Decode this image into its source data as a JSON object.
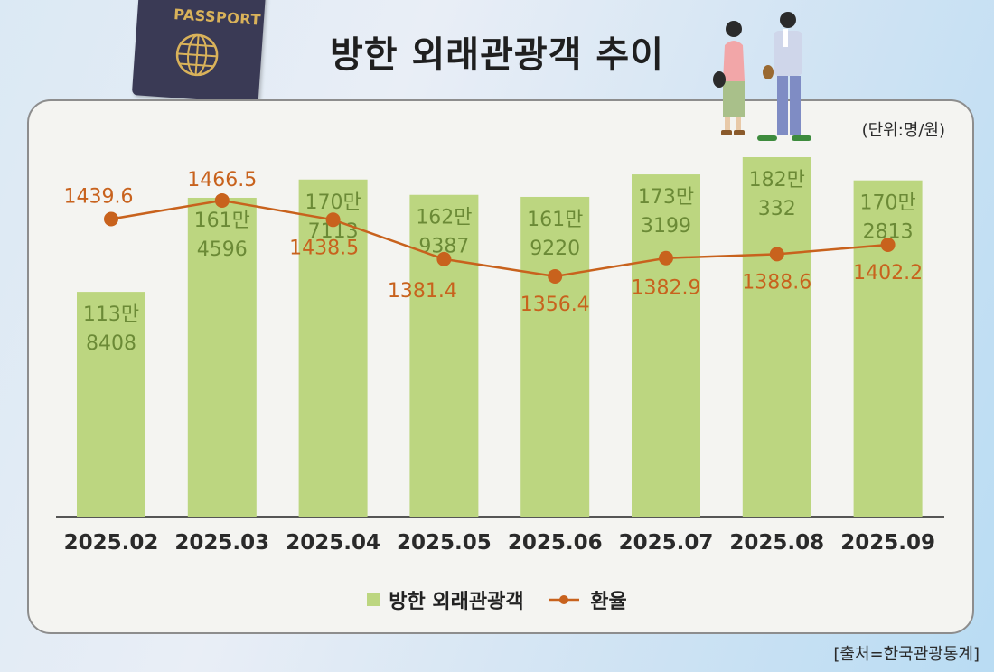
{
  "title": "방한 외래관광객 추이",
  "unit_label": "(단위:명/원)",
  "source": "[출처=한국관광통계]",
  "passport_label": "PASSPORT",
  "colors": {
    "bar": "#bcd680",
    "bar_label": "#6b8a36",
    "line": "#c8621d",
    "axis": "#555555"
  },
  "legend": {
    "bar_label": "방한 외래관광객",
    "line_label": "환율"
  },
  "chart_data": {
    "type": "bar",
    "categories": [
      "2025.02",
      "2025.03",
      "2025.04",
      "2025.05",
      "2025.06",
      "2025.07",
      "2025.08",
      "2025.09"
    ],
    "series": [
      {
        "name": "방한 외래관광객",
        "type": "bar",
        "values": [
          1138408,
          1614596,
          1707113,
          1629387,
          1619220,
          1733199,
          1820332,
          1702813
        ],
        "labels": [
          [
            "113만",
            "8408"
          ],
          [
            "161만",
            "4596"
          ],
          [
            "170만",
            "7113"
          ],
          [
            "162만",
            "9387"
          ],
          [
            "161만",
            "9220"
          ],
          [
            "173만",
            "3199"
          ],
          [
            "182만",
            "332"
          ],
          [
            "170만",
            "2813"
          ]
        ]
      },
      {
        "name": "환율",
        "type": "line",
        "values": [
          1439.6,
          1466.5,
          1438.5,
          1381.4,
          1356.4,
          1382.9,
          1388.6,
          1402.2
        ],
        "labels": [
          "1439.6",
          "1466.5",
          "1438.5",
          "1381.4",
          "1356.4",
          "1382.9",
          "1388.6",
          "1402.2"
        ]
      }
    ],
    "grid": false,
    "legend_position": "bottom"
  }
}
